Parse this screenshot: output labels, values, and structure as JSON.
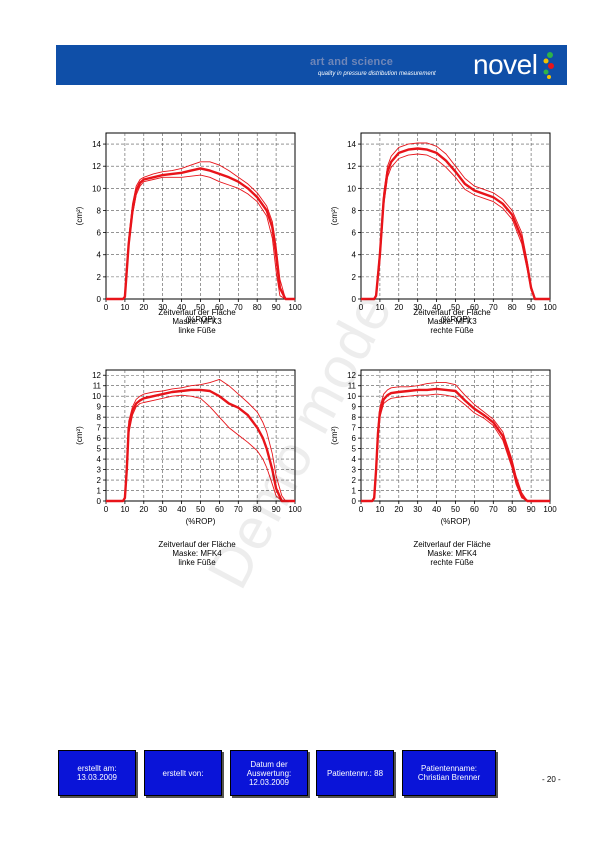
{
  "header": {
    "tagline_top": "art and science",
    "tagline_bottom": "quality in pressure distribution measurement",
    "logo_text": "novel",
    "brand_color": "#0f4fa8"
  },
  "watermark": "Demo mode",
  "chart_data": [
    {
      "type": "line",
      "xlabel": "(%ROP)",
      "ylabel": "(cm²)",
      "xlim": [
        0,
        100
      ],
      "ylim": [
        0,
        15
      ],
      "xticks": [
        0,
        10,
        20,
        30,
        40,
        50,
        60,
        70,
        80,
        90,
        100
      ],
      "yticks": [
        0,
        2,
        4,
        6,
        8,
        10,
        12,
        14
      ],
      "grid": true,
      "caption": [
        "Zeitverlauf der Fläche",
        "Maske: MFK3",
        "linke Füße"
      ],
      "series": [
        {
          "role": "mean",
          "x": [
            0,
            9,
            10,
            12,
            14,
            16,
            18,
            20,
            25,
            30,
            35,
            40,
            45,
            50,
            55,
            60,
            65,
            70,
            75,
            80,
            85,
            88,
            90,
            92,
            95,
            100
          ],
          "y": [
            0,
            0,
            0.2,
            5,
            8,
            9.8,
            10.5,
            10.8,
            11,
            11.2,
            11.3,
            11.4,
            11.6,
            11.8,
            11.6,
            11.3,
            11,
            10.6,
            10,
            9.2,
            8,
            6.5,
            4,
            1,
            0,
            0
          ]
        },
        {
          "role": "upper",
          "x": [
            0,
            9,
            10,
            12,
            14,
            16,
            18,
            20,
            25,
            30,
            35,
            40,
            45,
            50,
            55,
            60,
            65,
            70,
            75,
            80,
            85,
            88,
            90,
            92,
            95,
            100
          ],
          "y": [
            0,
            0,
            0.3,
            5.5,
            8.6,
            10.2,
            10.8,
            11,
            11.3,
            11.5,
            11.6,
            11.8,
            12.1,
            12.4,
            12.4,
            12.1,
            11.6,
            11,
            10.4,
            9.6,
            8.4,
            7,
            4.8,
            1.8,
            0,
            0
          ]
        },
        {
          "role": "lower",
          "x": [
            0,
            9,
            10,
            12,
            14,
            16,
            18,
            20,
            25,
            30,
            35,
            40,
            45,
            50,
            55,
            60,
            65,
            70,
            75,
            80,
            85,
            88,
            90,
            92,
            95,
            100
          ],
          "y": [
            0,
            0,
            0.1,
            4.6,
            7.6,
            9.4,
            10.2,
            10.6,
            10.8,
            11,
            11,
            11,
            11.1,
            11.2,
            11,
            10.6,
            10.3,
            10,
            9.5,
            8.8,
            7.5,
            5.5,
            2.5,
            0.3,
            0,
            0
          ]
        }
      ]
    },
    {
      "type": "line",
      "xlabel": "(%ROP)",
      "ylabel": "(cm²)",
      "xlim": [
        0,
        100
      ],
      "ylim": [
        0,
        15
      ],
      "xticks": [
        0,
        10,
        20,
        30,
        40,
        50,
        60,
        70,
        80,
        90,
        100
      ],
      "yticks": [
        0,
        2,
        4,
        6,
        8,
        10,
        12,
        14
      ],
      "grid": true,
      "caption": [
        "Zeitverlauf der Fläche",
        "Maske: MFK3",
        "rechte Füße"
      ],
      "series": [
        {
          "role": "mean",
          "x": [
            0,
            7,
            8,
            10,
            12,
            14,
            16,
            20,
            25,
            30,
            35,
            40,
            45,
            50,
            55,
            60,
            65,
            70,
            75,
            80,
            85,
            88,
            90,
            92,
            95,
            100
          ],
          "y": [
            0,
            0,
            0.3,
            4,
            9,
            11.5,
            12.4,
            13.2,
            13.5,
            13.6,
            13.5,
            13.2,
            12.5,
            11.5,
            10.4,
            9.8,
            9.5,
            9.2,
            8.6,
            7.6,
            5.5,
            3,
            1,
            0,
            0,
            0
          ]
        },
        {
          "role": "upper",
          "x": [
            0,
            7,
            8,
            10,
            12,
            14,
            16,
            20,
            25,
            30,
            35,
            40,
            45,
            50,
            55,
            60,
            65,
            70,
            75,
            80,
            85,
            88,
            90,
            92,
            95,
            100
          ],
          "y": [
            0,
            0,
            0.5,
            4.6,
            9.6,
            12,
            12.9,
            13.7,
            14,
            14.1,
            14.1,
            13.8,
            13.1,
            12,
            10.9,
            10.2,
            9.9,
            9.6,
            9,
            8,
            6,
            3.4,
            1.2,
            0,
            0,
            0
          ]
        },
        {
          "role": "lower",
          "x": [
            0,
            7,
            8,
            10,
            12,
            14,
            16,
            20,
            25,
            30,
            35,
            40,
            45,
            50,
            55,
            60,
            65,
            70,
            75,
            80,
            85,
            88,
            90,
            92,
            95,
            100
          ],
          "y": [
            0,
            0,
            0.2,
            3.4,
            8.4,
            11,
            11.9,
            12.7,
            13,
            13.1,
            13,
            12.6,
            11.9,
            11,
            9.9,
            9.4,
            9.1,
            8.8,
            8.2,
            7.2,
            5,
            2.6,
            0.8,
            0,
            0,
            0
          ]
        }
      ]
    },
    {
      "type": "line",
      "xlabel": "(%ROP)",
      "ylabel": "(cm²)",
      "xlim": [
        0,
        100
      ],
      "ylim": [
        0,
        12.5
      ],
      "xticks": [
        0,
        10,
        20,
        30,
        40,
        50,
        60,
        70,
        80,
        90,
        100
      ],
      "yticks": [
        0,
        1,
        2,
        3,
        4,
        5,
        6,
        7,
        8,
        9,
        10,
        11,
        12
      ],
      "grid": true,
      "caption": [
        "Zeitverlauf der Fläche",
        "Maske: MFK4",
        "linke Füße"
      ],
      "series": [
        {
          "role": "mean",
          "x": [
            0,
            9,
            10,
            11,
            12,
            14,
            16,
            18,
            20,
            25,
            30,
            35,
            40,
            45,
            50,
            55,
            60,
            65,
            70,
            75,
            80,
            83,
            85,
            88,
            90,
            93,
            95,
            100
          ],
          "y": [
            0,
            0,
            0.3,
            3,
            7,
            8.6,
            9.3,
            9.6,
            9.8,
            10,
            10.2,
            10.4,
            10.5,
            10.6,
            10.6,
            10.5,
            10,
            9.3,
            8.9,
            8.2,
            7,
            6,
            5,
            3,
            1.2,
            0,
            0,
            0
          ]
        },
        {
          "role": "upper",
          "x": [
            0,
            9,
            10,
            11,
            12,
            14,
            16,
            18,
            20,
            25,
            30,
            35,
            40,
            45,
            50,
            55,
            60,
            65,
            70,
            75,
            80,
            83,
            85,
            88,
            90,
            93,
            95,
            100
          ],
          "y": [
            0,
            0,
            0.4,
            3.4,
            7.6,
            9,
            9.7,
            10,
            10.2,
            10.4,
            10.5,
            10.7,
            10.8,
            11,
            11.1,
            11.3,
            11.6,
            11,
            10.2,
            9.4,
            8.5,
            7.5,
            6.6,
            4.5,
            2.4,
            0.5,
            0,
            0
          ]
        },
        {
          "role": "lower",
          "x": [
            0,
            9,
            10,
            11,
            12,
            14,
            16,
            18,
            20,
            25,
            30,
            35,
            40,
            45,
            50,
            55,
            60,
            65,
            70,
            75,
            80,
            83,
            85,
            88,
            90,
            93,
            95,
            100
          ],
          "y": [
            0,
            0,
            0.2,
            2.6,
            6.4,
            8.2,
            9,
            9.3,
            9.4,
            9.6,
            9.8,
            10,
            10.1,
            10,
            9.8,
            9,
            8,
            7,
            6.3,
            5.6,
            4.8,
            4,
            3.2,
            1.6,
            0.5,
            0,
            0,
            0
          ]
        }
      ]
    },
    {
      "type": "line",
      "xlabel": "(%ROP)",
      "ylabel": "(cm²)",
      "xlim": [
        0,
        100
      ],
      "ylim": [
        0,
        12.5
      ],
      "xticks": [
        0,
        10,
        20,
        30,
        40,
        50,
        60,
        70,
        80,
        90,
        100
      ],
      "yticks": [
        0,
        1,
        2,
        3,
        4,
        5,
        6,
        7,
        8,
        9,
        10,
        11,
        12
      ],
      "grid": true,
      "caption": [
        "Zeitverlauf der Fläche",
        "Maske: MFK4",
        "rechte Füße"
      ],
      "series": [
        {
          "role": "mean",
          "x": [
            0,
            6,
            7,
            8,
            9,
            10,
            12,
            14,
            16,
            20,
            25,
            30,
            35,
            40,
            45,
            50,
            55,
            60,
            65,
            70,
            75,
            80,
            82,
            85,
            88,
            90,
            95,
            100
          ],
          "y": [
            0,
            0,
            0.3,
            3,
            6.5,
            8.5,
            9.7,
            10.1,
            10.3,
            10.4,
            10.5,
            10.6,
            10.6,
            10.7,
            10.6,
            10.5,
            9.6,
            8.8,
            8.2,
            7.5,
            6.2,
            3.5,
            2,
            0.5,
            0,
            0,
            0,
            0
          ]
        },
        {
          "role": "upper",
          "x": [
            0,
            6,
            7,
            8,
            9,
            10,
            12,
            14,
            16,
            20,
            25,
            30,
            35,
            40,
            45,
            50,
            55,
            60,
            65,
            70,
            75,
            80,
            82,
            85,
            88,
            90,
            95,
            100
          ],
          "y": [
            0,
            0,
            0.5,
            3.4,
            7,
            9,
            10.2,
            10.6,
            10.8,
            10.9,
            10.9,
            11,
            11.2,
            11.3,
            11.3,
            11.1,
            10.1,
            9.2,
            8.5,
            7.8,
            6.6,
            3.9,
            2.4,
            0.8,
            0,
            0,
            0,
            0
          ]
        },
        {
          "role": "lower",
          "x": [
            0,
            6,
            7,
            8,
            9,
            10,
            12,
            14,
            16,
            20,
            25,
            30,
            35,
            40,
            45,
            50,
            55,
            60,
            65,
            70,
            75,
            80,
            82,
            85,
            88,
            90,
            95,
            100
          ],
          "y": [
            0,
            0,
            0.2,
            2.5,
            6,
            8,
            9.3,
            9.6,
            9.8,
            9.9,
            10,
            10.1,
            10.1,
            10.2,
            10.1,
            9.9,
            9.2,
            8.4,
            7.9,
            7.2,
            5.8,
            3.1,
            1.6,
            0.3,
            0,
            0,
            0,
            0
          ]
        }
      ]
    }
  ],
  "footer": {
    "created_on_label": "erstellt am:",
    "created_on_value": "13.03.2009",
    "created_by_label": "erstellt von:",
    "eval_label_1": "Datum der",
    "eval_label_2": "Auswertung:",
    "eval_value": "12.03.2009",
    "patient_no": "Patientennr.: 88",
    "patient_name_label": "Patientenname:",
    "patient_name_value": "Christian Brenner",
    "page": "- 20 -"
  },
  "colors": {
    "line": "#e8141a",
    "footer_box": "#0a14d8"
  }
}
